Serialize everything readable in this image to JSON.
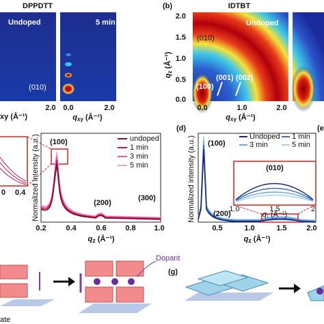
{
  "panel_a": {
    "title": "DPPDTT",
    "left_label": "Undoped",
    "right_label": "5 min",
    "peak": "(010)",
    "x_ticks": [
      "2.0",
      "0.0",
      "2.0"
    ],
    "left_axis_cut": "xy (Å⁻¹)",
    "x_axis": {
      "symbol": "q",
      "subscript": "xy",
      "unit": " (Å⁻¹)"
    }
  },
  "panel_b": {
    "label": "(b)",
    "title": "IDTBT",
    "inner_label": "Undoped",
    "peaks": [
      "(010)",
      "(100)",
      "(001)",
      "(002)"
    ],
    "y_ticks": [
      "2.0",
      "1.5",
      "1.0",
      "0.5",
      "0.0"
    ],
    "x_ticks": [
      "0.0",
      "1.0",
      "2.0"
    ],
    "y_axis": {
      "symbol": "q",
      "subscript": "z",
      "unit": " (Å⁻¹)"
    },
    "x_axis": {
      "symbol": "q",
      "subscript": "xy",
      "unit": " (Å⁻¹)"
    }
  },
  "panel_c": {
    "peaks": [
      "(100)",
      "(200)",
      "(300)"
    ],
    "legend": [
      "undoped",
      "1 min",
      "3 min",
      "5 min"
    ],
    "y_axis": "Normalized intensity (a.u.)",
    "x_ticks": [
      "0.2",
      "0.4",
      "0.6",
      "0.8",
      "1.0"
    ],
    "inset_ticks": [
      "0.4",
      "0"
    ],
    "x_axis": {
      "symbol": "q",
      "subscript": "z",
      "unit": " (Å⁻¹)"
    }
  },
  "panel_d": {
    "label": "(d)",
    "next_label": "(e",
    "peaks": [
      "(100)",
      "(200)"
    ],
    "legend": [
      "Undoped",
      "1 min",
      "3 min",
      "5 min"
    ],
    "inset_peak": "(010)",
    "inset_ticks": [
      "1.0",
      "1.5",
      "2"
    ],
    "inset_axis": {
      "symbol": "q",
      "subscript": "z",
      "unit": " (Å⁻¹)"
    },
    "y_axis": "Normalized intensity (a.u.)",
    "x_ticks": [
      "0.5",
      "1.0",
      "1.5",
      "2.0"
    ],
    "x_axis": {
      "symbol": "q",
      "subscript": "z",
      "unit": " (Å⁻¹)"
    }
  },
  "panel_f": {
    "dopant": "Dopant",
    "substrate_cut": "ate"
  },
  "panel_g": {
    "label": "(g)"
  }
}
